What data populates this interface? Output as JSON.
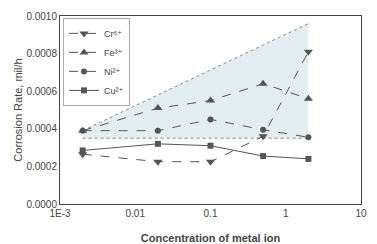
{
  "chart_data": {
    "type": "line",
    "xlabel": "Concentration of metal ion",
    "ylabel": "Corrosion Rate, mil/h",
    "x": [
      0.002,
      0.02,
      0.1,
      0.5,
      2.0
    ],
    "series": [
      {
        "name": "Cu²⁺",
        "color": "#555555",
        "marker": "square",
        "line_style": "solid",
        "values": [
          0.000285,
          0.00032,
          0.00031,
          0.000255,
          0.00024
        ]
      },
      {
        "name": "Ni²⁺",
        "color": "#555555",
        "marker": "circle",
        "line_style": "dashed",
        "values": [
          0.00039,
          0.00039,
          0.00045,
          0.000395,
          0.000355
        ]
      },
      {
        "name": "Fe³⁺",
        "color": "#555555",
        "marker": "triangle-up",
        "line_style": "dashed",
        "values": [
          0.00039,
          0.00051,
          0.00055,
          0.00064,
          0.00056
        ]
      },
      {
        "name": "Cr⁶⁺",
        "color": "#555555",
        "marker": "triangle-down",
        "line_style": "dashed",
        "values": [
          0.000265,
          0.000225,
          0.000225,
          0.00036,
          0.00081
        ]
      }
    ],
    "shade": {
      "x": [
        0.002,
        2.0
      ],
      "top": [
        0.00039,
        0.00096
      ],
      "bottom": [
        0.00035,
        0.00035
      ],
      "color": "#c8dde8"
    },
    "log": "x",
    "xlim": [
      0.001,
      10
    ],
    "xticks": [
      {
        "value": 0.001,
        "label": "1E-3"
      },
      0.01,
      0.1,
      1,
      10
    ],
    "ylim": [
      0.0,
      0.001
    ],
    "yticks": [
      {
        "value": 0,
        "label": "0.0000"
      },
      {
        "value": 0.0002,
        "label": "0.0002"
      },
      {
        "value": 0.0004,
        "label": "0.0004"
      },
      {
        "value": 0.0006,
        "label": "0.0006"
      },
      {
        "value": 0.0008,
        "label": "0.0008"
      },
      {
        "value": 0.001,
        "label": "0.0010"
      }
    ],
    "grid": false,
    "legend": "upper left"
  }
}
